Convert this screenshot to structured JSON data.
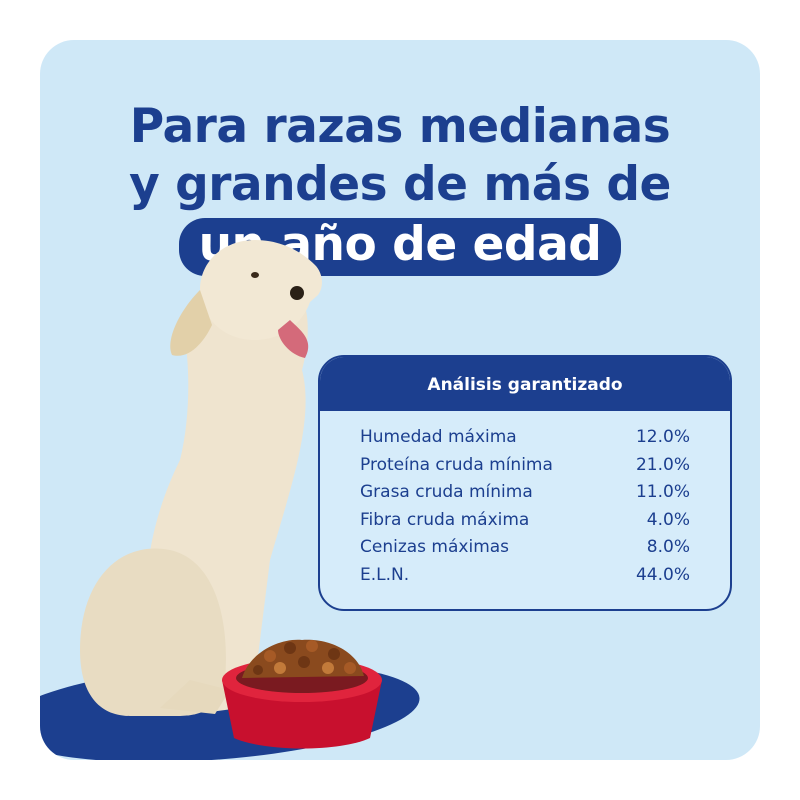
{
  "headline": {
    "line1": "Para razas medianas",
    "line2": "y grandes de más de",
    "highlight": "un año de edad"
  },
  "analysis": {
    "title": "Análisis garantizado",
    "rows": [
      {
        "label": "Humedad máxima",
        "value": "12.0%"
      },
      {
        "label": "Proteína cruda mínima",
        "value": "21.0%"
      },
      {
        "label": "Grasa cruda mínima",
        "value": "11.0%"
      },
      {
        "label": "Fibra cruda máxima",
        "value": "4.0%"
      },
      {
        "label": "Cenizas máximas",
        "value": "8.0%"
      },
      {
        "label": "E.L.N.",
        "value": "44.0%"
      }
    ]
  },
  "colors": {
    "primary": "#1c3f8f",
    "background": "#cfe8f7",
    "bowl": "#c8102e"
  }
}
